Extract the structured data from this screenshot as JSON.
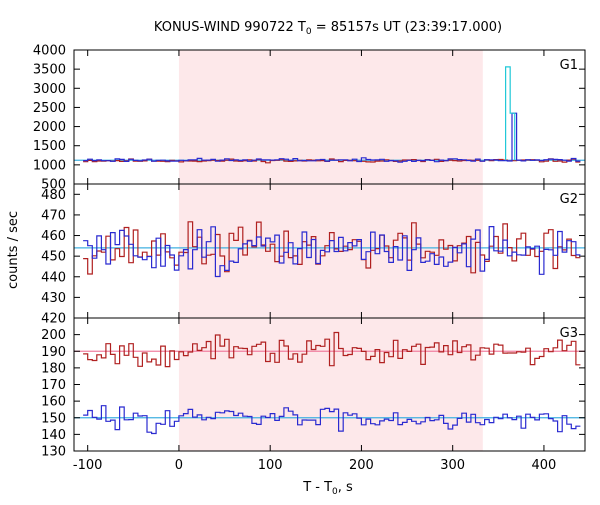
{
  "chart_data": {
    "type": "line",
    "title_main": "KONUS-WIND 990722 T",
    "title_sub": "0",
    "title_rest": " = 85157s UT (23:39:17.000)",
    "xlabel_main": "T - T",
    "xlabel_sub": "0",
    "xlabel_rest": ", s",
    "ylabel": "counts / sec",
    "xlim": [
      -115,
      445
    ],
    "x_ticks": [
      -100,
      0,
      100,
      200,
      300,
      400
    ],
    "x_tick_labels": [
      "-100",
      "0",
      "100",
      "200",
      "300",
      "400"
    ],
    "highlight_interval": [
      0,
      333
    ],
    "colors": {
      "highlight": "#fde8ea",
      "series_a": "#b02020",
      "series_b": "#2a2ad0",
      "series_g1_spike": "#20c8d8",
      "bg_fit_a": "#f080a0",
      "bg_fit_b": "#40b0e0"
    },
    "bin_width_s": 5,
    "panels": [
      {
        "label": "G1",
        "ylim": [
          500,
          4000
        ],
        "y_ticks": [
          500,
          1000,
          1500,
          2000,
          2500,
          3000,
          3500,
          4000
        ],
        "y_tick_labels": [
          "500",
          "1000",
          "1500",
          "2000",
          "2500",
          "3000",
          "3500",
          "4000"
        ],
        "bg_level": 1120,
        "series": [
          {
            "color_key": "series_a",
            "mean": 1110,
            "noise": 30,
            "seed": 11
          },
          {
            "color_key": "series_b",
            "mean": 1125,
            "noise": 30,
            "seed": 23
          }
        ],
        "spike": {
          "start": 358,
          "width": 5,
          "cyan_values": [
            3560,
            2350
          ],
          "blue_values": [
            1100,
            2350
          ]
        }
      },
      {
        "label": "G2",
        "ylim": [
          420,
          485
        ],
        "y_ticks": [
          420,
          430,
          440,
          450,
          460,
          470,
          480
        ],
        "y_tick_labels": [
          "420",
          "430",
          "440",
          "450",
          "460",
          "470",
          "480"
        ],
        "bg_level": 454,
        "series": [
          {
            "color_key": "series_a",
            "mean": 454,
            "noise": 8,
            "seed": 37
          },
          {
            "color_key": "series_b",
            "mean": 453,
            "noise": 8,
            "seed": 51
          }
        ]
      },
      {
        "label": "G3",
        "ylim": [
          130,
          210
        ],
        "y_ticks": [
          130,
          140,
          150,
          160,
          170,
          180,
          190,
          200
        ],
        "y_tick_labels": [
          "130",
          "140",
          "150",
          "160",
          "170",
          "180",
          "190",
          "200"
        ],
        "bg_level_a": 190,
        "bg_level_b": 150,
        "series": [
          {
            "color_key": "series_a",
            "mean": 190,
            "noise": 6,
            "seed": 67
          },
          {
            "color_key": "series_b",
            "mean": 150,
            "noise": 5,
            "seed": 83
          }
        ]
      }
    ]
  }
}
